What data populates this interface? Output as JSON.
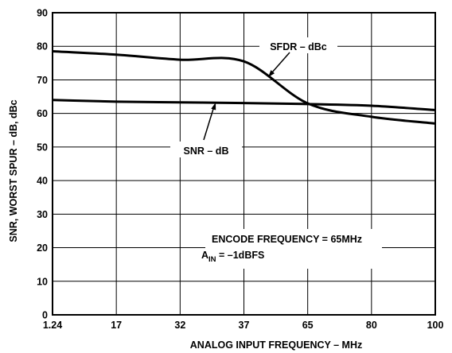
{
  "chart_data": {
    "type": "line",
    "xlabel": "ANALOG INPUT FREQUENCY – MHz",
    "ylabel": "SNR, WORST SPUR – dB, dBc",
    "x_tick_labels": [
      "1.24",
      "17",
      "32",
      "37",
      "65",
      "80",
      "100"
    ],
    "y_ticks": [
      0,
      10,
      20,
      30,
      40,
      50,
      60,
      70,
      80,
      90
    ],
    "ylim": [
      0,
      90
    ],
    "grid": true,
    "series": [
      {
        "name": "SFDR – dBc",
        "values": [
          78.5,
          77.5,
          76.0,
          75.5,
          63.0,
          59.0,
          57.0
        ]
      },
      {
        "name": "SNR – dB",
        "values": [
          64.0,
          63.5,
          63.3,
          63.1,
          62.8,
          62.3,
          61.0
        ]
      }
    ],
    "annotation": {
      "line1": "ENCODE FREQUENCY = 65MHz",
      "line2_main": "A",
      "line2_sub": "IN",
      "line2_rest": " = –1dBFS"
    }
  }
}
